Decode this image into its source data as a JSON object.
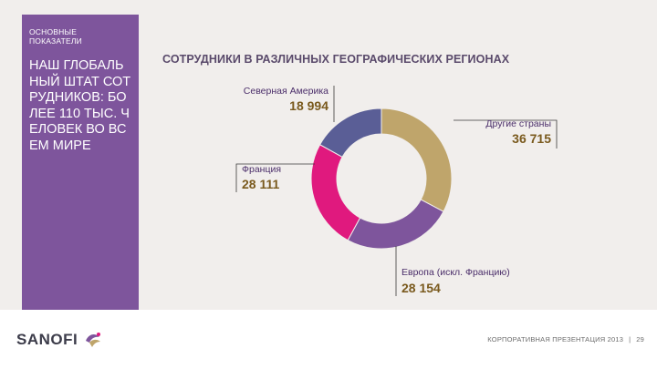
{
  "sidebar": {
    "section_label": "ОСНОВНЫЕ ПОКАЗАТЕЛИ",
    "headline": "НАШ ГЛОБАЛЬНЫЙ ШТАТ СОТРУДНИКОВ: БОЛЕЕ 110 ТЫС. ЧЕЛОВЕК ВО ВСЕМ МИРЕ"
  },
  "chart_data": {
    "type": "pie",
    "title": "СОТРУДНИКИ В РАЗЛИЧНЫХ ГЕОГРАФИЧЕСКИХ РЕГИОНАХ",
    "slices": [
      {
        "label": "Другие страны",
        "value": 36715,
        "display": "36 715",
        "color": "#bfa56b"
      },
      {
        "label": "Европа (искл. Францию)",
        "value": 28154,
        "display": "28 154",
        "color": "#7e559c"
      },
      {
        "label": "Франция",
        "value": 28111,
        "display": "28 111",
        "color": "#e0197e"
      },
      {
        "label": "Северная Америка",
        "value": 18994,
        "display": "18 994",
        "color": "#5a5e96"
      }
    ],
    "label_color": "#4b2e6a",
    "value_color": "#7a5a1e"
  },
  "footer": {
    "logo": "SANOFI",
    "presentation": "КОРПОРАТИВНАЯ ПРЕЗЕНТАЦИЯ 2013",
    "separator": "|",
    "page_number": "29"
  }
}
